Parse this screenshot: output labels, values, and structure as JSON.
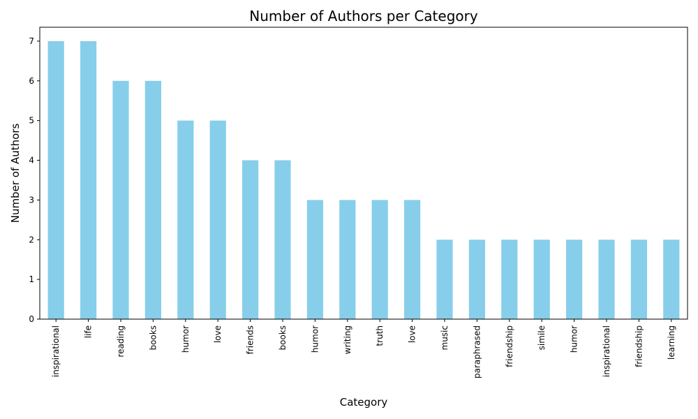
{
  "chart_data": {
    "type": "bar",
    "title": "Number of Authors per Category",
    "xlabel": "Category",
    "ylabel": "Number of Authors",
    "categories": [
      "inspirational",
      "life",
      "reading",
      "books",
      "humor",
      "love",
      "friends",
      "books",
      "humor",
      "writing",
      "truth",
      "love",
      "music",
      "paraphrased",
      "friendship",
      "simile",
      "humor",
      "inspirational",
      "friendship",
      "learning"
    ],
    "values": [
      7,
      7,
      6,
      6,
      5,
      5,
      4,
      4,
      3,
      3,
      3,
      3,
      2,
      2,
      2,
      2,
      2,
      2,
      2,
      2
    ],
    "ylim": [
      0,
      7.35
    ],
    "yticks": [
      0,
      1,
      2,
      3,
      4,
      5,
      6,
      7
    ],
    "grid": false,
    "bar_color": "#87ceeb",
    "axis_color": "#000000"
  }
}
